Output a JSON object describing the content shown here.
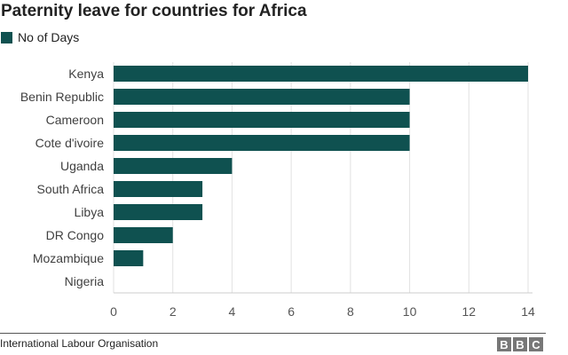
{
  "chart_data": {
    "type": "bar",
    "orientation": "horizontal",
    "title": "Paternity leave for countries for Africa",
    "categories": [
      "Kenya",
      "Benin Republic",
      "Cameroon",
      "Cote d'ivoire",
      "Uganda",
      "South Africa",
      "Libya",
      "DR Congo",
      "Mozambique",
      "Nigeria"
    ],
    "series": [
      {
        "name": "No of Days",
        "values": [
          14,
          10,
          10,
          10,
          4,
          3,
          3,
          2,
          1,
          0
        ]
      }
    ],
    "xlim": [
      0,
      14
    ],
    "xticks": [
      "0",
      "2",
      "4",
      "6",
      "8",
      "10",
      "12",
      "14"
    ],
    "grid": true,
    "legend": "top-left",
    "bar_color": "#0f5150"
  },
  "footer": {
    "source": "International Labour Organisation",
    "logo": [
      "B",
      "B",
      "C"
    ]
  }
}
